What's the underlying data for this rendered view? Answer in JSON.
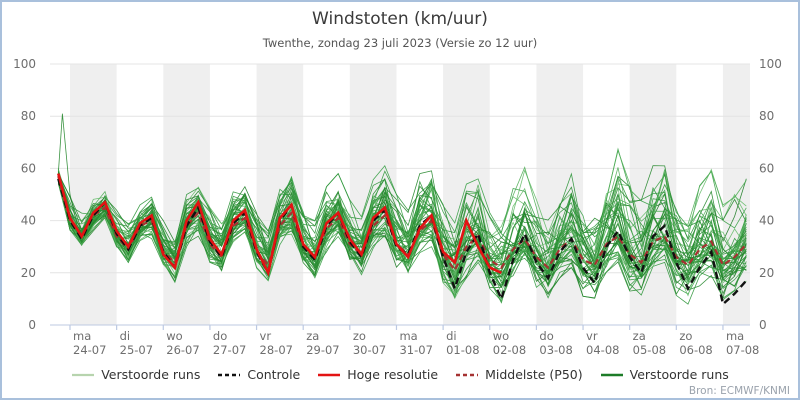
{
  "header": {
    "title": "Windstoten (km/uur)",
    "subtitle": "Twenthe, zondag 23 juli 2023 (Versie zo 12 uur)"
  },
  "source_label": "Bron: ECMWF/KNMI",
  "chart_data": {
    "type": "line",
    "title": "Windstoten (km/uur)",
    "subtitle": "Twenthe, zondag 23 juli 2023 (Versie zo 12 uur)",
    "ylabel": "km/uur",
    "ylim": [
      0,
      100
    ],
    "y_ticks": [
      0,
      20,
      40,
      60,
      80,
      100
    ],
    "x_start": "2023-07-23 18:00",
    "x_step_hours": 6,
    "x_day_ticks": [
      {
        "day": "ma",
        "date": "24-07"
      },
      {
        "day": "di",
        "date": "25-07"
      },
      {
        "day": "wo",
        "date": "26-07"
      },
      {
        "day": "do",
        "date": "27-07"
      },
      {
        "day": "vr",
        "date": "28-07"
      },
      {
        "day": "za",
        "date": "29-07"
      },
      {
        "day": "zo",
        "date": "30-07"
      },
      {
        "day": "ma",
        "date": "31-07"
      },
      {
        "day": "di",
        "date": "01-08"
      },
      {
        "day": "wo",
        "date": "02-08"
      },
      {
        "day": "do",
        "date": "03-08"
      },
      {
        "day": "vr",
        "date": "04-08"
      },
      {
        "day": "za",
        "date": "05-08"
      },
      {
        "day": "zo",
        "date": "06-08"
      },
      {
        "day": "ma",
        "date": "07-08"
      }
    ],
    "series": [
      {
        "name": "Hoge resolutie",
        "color": "#e31313",
        "style": "solid",
        "width": 2.6,
        "values": [
          58,
          41,
          34,
          43,
          47,
          36,
          30,
          39,
          42,
          27,
          22,
          40,
          47,
          33,
          27,
          40,
          44,
          29,
          20,
          41,
          46,
          31,
          26,
          39,
          43,
          33,
          27,
          41,
          45,
          31,
          26,
          37,
          42,
          28,
          24,
          40,
          30,
          22,
          20
        ]
      },
      {
        "name": "Controle",
        "color": "#111111",
        "style": "dashed",
        "width": 2.4,
        "values": [
          56,
          40,
          33,
          42,
          47,
          35,
          29,
          38,
          41,
          28,
          22,
          38,
          45,
          32,
          26,
          39,
          43,
          28,
          20,
          40,
          46,
          30,
          25,
          38,
          43,
          32,
          26,
          40,
          44,
          30,
          27,
          38,
          42,
          26,
          14,
          28,
          35,
          20,
          10,
          25,
          35,
          24,
          18,
          28,
          33,
          22,
          16,
          30,
          36,
          26,
          20,
          34,
          38,
          24,
          14,
          22,
          28,
          8,
          12,
          17
        ]
      },
      {
        "name": "Middelste (P50)",
        "color": "#a63232",
        "style": "dashed",
        "width": 2.2,
        "values": [
          57,
          40,
          34,
          42,
          45,
          34,
          29,
          38,
          40,
          28,
          24,
          38,
          43,
          31,
          26,
          38,
          41,
          28,
          23,
          38,
          43,
          30,
          26,
          37,
          41,
          31,
          27,
          38,
          42,
          31,
          27,
          36,
          40,
          27,
          21,
          30,
          34,
          25,
          22,
          29,
          33,
          26,
          22,
          29,
          33,
          25,
          23,
          31,
          34,
          27,
          24,
          32,
          34,
          26,
          23,
          29,
          32,
          23,
          26,
          31
        ]
      }
    ],
    "ensemble": {
      "name": "Verstoorde runs",
      "members": 48,
      "line_colors": [
        "#2f963b",
        "#39a046",
        "#52ae59",
        "#27882f",
        "#66bb6a",
        "#1e7d26"
      ],
      "envelope_min": [
        54,
        36,
        30,
        36,
        40,
        29,
        24,
        31,
        33,
        21,
        16,
        30,
        34,
        24,
        19,
        30,
        33,
        20,
        15,
        30,
        34,
        21,
        17,
        28,
        32,
        21,
        16,
        28,
        31,
        19,
        15,
        26,
        30,
        14,
        9,
        18,
        24,
        12,
        7,
        17,
        23,
        12,
        8,
        18,
        22,
        11,
        9,
        19,
        24,
        13,
        10,
        20,
        24,
        11,
        8,
        15,
        18,
        9,
        12,
        16
      ],
      "envelope_max": [
        60,
        52,
        46,
        50,
        53,
        46,
        40,
        46,
        49,
        40,
        35,
        50,
        53,
        45,
        39,
        51,
        54,
        43,
        36,
        52,
        57,
        46,
        40,
        53,
        58,
        48,
        42,
        56,
        61,
        50,
        44,
        58,
        64,
        48,
        40,
        56,
        62,
        46,
        42,
        58,
        65,
        48,
        42,
        56,
        62,
        47,
        44,
        62,
        74,
        55,
        48,
        62,
        70,
        50,
        42,
        54,
        60,
        46,
        50,
        56
      ],
      "spike": {
        "t": [
          0,
          0.35,
          1
        ],
        "v": [
          58,
          81,
          50
        ]
      }
    },
    "legend": [
      {
        "label": "Verstoorde runs",
        "color": "#b7d4ae",
        "dash": null,
        "width": 2.2
      },
      {
        "label": "Controle",
        "color": "#111111",
        "dash": "4 3",
        "width": 2.5
      },
      {
        "label": "Hoge resolutie",
        "color": "#e31313",
        "dash": null,
        "width": 2.6
      },
      {
        "label": "Middelste (P50)",
        "color": "#a63232",
        "dash": "4 3",
        "width": 2.5
      },
      {
        "label": "Verstoorde runs",
        "color": "#1d7c28",
        "dash": null,
        "width": 2.5
      }
    ],
    "style": {
      "band_color": "#efefef",
      "grid_color": "#e4e4e4",
      "axis_color": "#bcc9e2",
      "label_color": "#6e6e6e"
    }
  }
}
